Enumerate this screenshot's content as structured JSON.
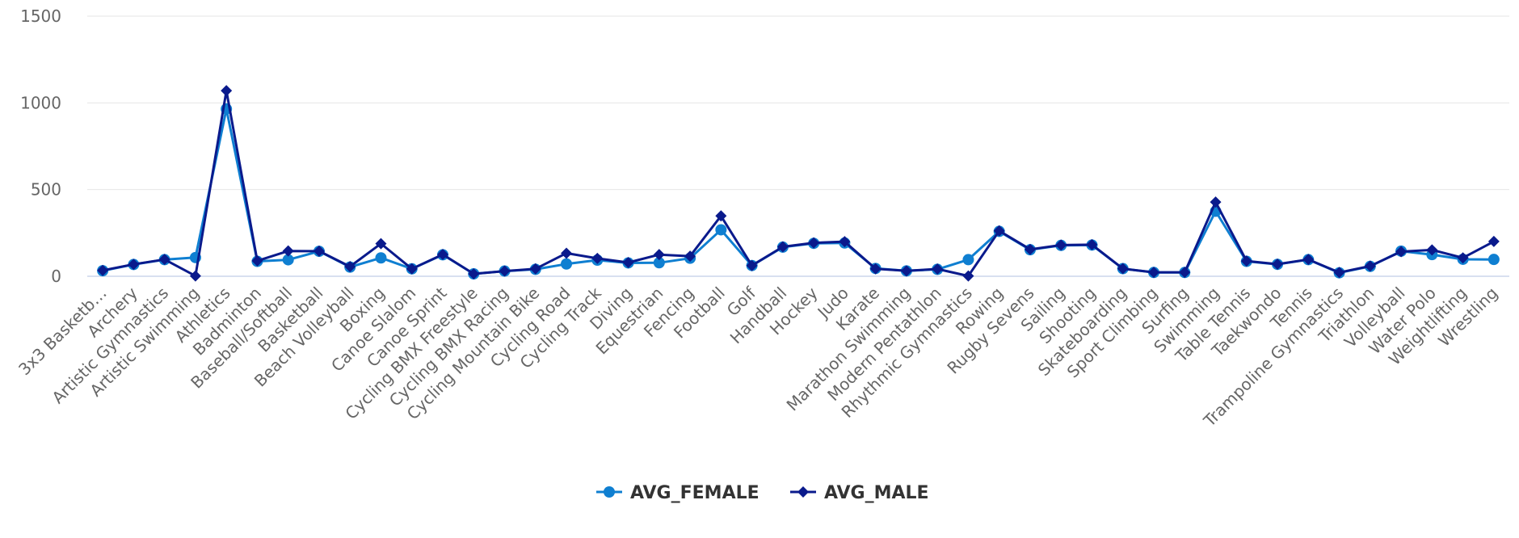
{
  "chart_data": {
    "type": "line",
    "title": "",
    "xlabel": "",
    "ylabel": "",
    "ylim": [
      0,
      1500
    ],
    "yticks": [
      0,
      500,
      1000,
      1500
    ],
    "grid": true,
    "legend_position": "bottom-center",
    "categories": [
      "3x3 Basketb…",
      "Archery",
      "Artistic Gymnastics",
      "Artistic Swimming",
      "Athletics",
      "Badminton",
      "Baseball/Softball",
      "Basketball",
      "Beach Volleyball",
      "Boxing",
      "Canoe Slalom",
      "Canoe Sprint",
      "Cycling BMX Freestyle",
      "Cycling BMX Racing",
      "Cycling Mountain Bike",
      "Cycling Road",
      "Cycling Track",
      "Diving",
      "Equestrian",
      "Fencing",
      "Football",
      "Golf",
      "Handball",
      "Hockey",
      "Judo",
      "Karate",
      "Marathon Swimming",
      "Modern Pentathlon",
      "Rhythmic Gymnastics",
      "Rowing",
      "Rugby Sevens",
      "Sailing",
      "Shooting",
      "Skateboarding",
      "Sport Climbing",
      "Surfing",
      "Swimming",
      "Table Tennis",
      "Taekwondo",
      "Tennis",
      "Trampoline Gymnastics",
      "Triathlon",
      "Volleyball",
      "Water Polo",
      "Weightlifting",
      "Wrestling"
    ],
    "series": [
      {
        "name": "AVG_FEMALE",
        "color": "#0f7fd1",
        "marker": "circle",
        "values": [
          32,
          68,
          96,
          108,
          965,
          86,
          95,
          144,
          53,
          106,
          43,
          124,
          14,
          30,
          40,
          71,
          93,
          77,
          78,
          104,
          268,
          62,
          168,
          190,
          192,
          45,
          31,
          40,
          96,
          259,
          153,
          178,
          180,
          44,
          22,
          22,
          375,
          86,
          69,
          96,
          20,
          57,
          145,
          125,
          98,
          97
        ]
      },
      {
        "name": "AVG_MALE",
        "color": "#0a1a8c",
        "marker": "diamond",
        "values": [
          34,
          69,
          97,
          2,
          1070,
          89,
          146,
          145,
          56,
          188,
          43,
          126,
          14,
          30,
          43,
          133,
          103,
          79,
          125,
          116,
          348,
          62,
          170,
          193,
          200,
          43,
          31,
          42,
          2,
          262,
          155,
          180,
          182,
          44,
          23,
          23,
          428,
          88,
          70,
          97,
          22,
          59,
          142,
          152,
          106,
          201
        ]
      }
    ]
  }
}
